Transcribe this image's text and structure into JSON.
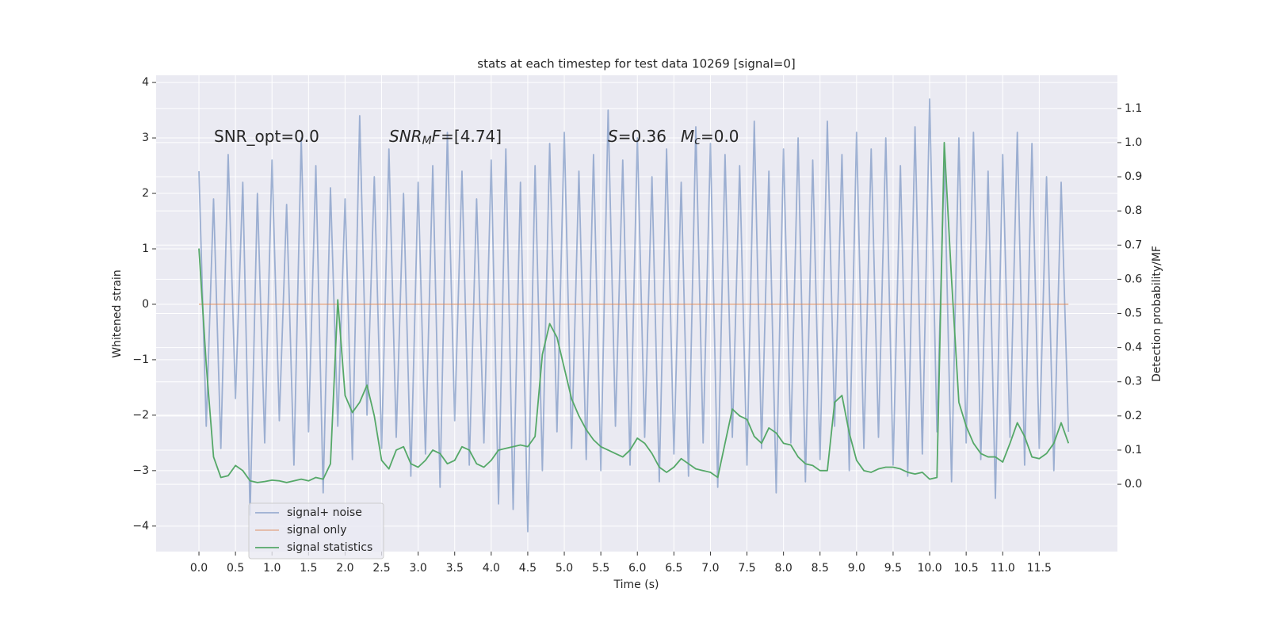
{
  "chart_data": {
    "type": "line",
    "title": "stats at each timestep for test data 10269 [signal=0]",
    "xlabel": "Time (s)",
    "ylabel": "Whitened strain",
    "y2label": "Detection probability/MF",
    "xlim": [
      -0.586,
      12.57
    ],
    "ylim": [
      -4.46,
      4.13
    ],
    "y2lim": [
      -0.197,
      1.197
    ],
    "xticks": [
      {
        "value": 0,
        "label": "0.0"
      },
      0.5,
      {
        "value": 1,
        "label": "1.0"
      },
      1.5,
      {
        "value": 2,
        "label": "2.0"
      },
      2.5,
      {
        "value": 3,
        "label": "3.0"
      },
      3.5,
      {
        "value": 4,
        "label": "4.0"
      },
      4.5,
      {
        "value": 5,
        "label": "5.0"
      },
      5.5,
      {
        "value": 6,
        "label": "6.0"
      },
      6.5,
      {
        "value": 7,
        "label": "7.0"
      },
      7.5,
      {
        "value": 8,
        "label": "8.0"
      },
      8.5,
      {
        "value": 9,
        "label": "9.0"
      },
      9.5,
      {
        "value": 10,
        "label": "10.0"
      },
      10.5,
      {
        "value": 11,
        "label": "11.0"
      },
      11.5
    ],
    "yticks": [
      {
        "value": -4,
        "label": "−4"
      },
      {
        "value": -3,
        "label": "−3"
      },
      {
        "value": -2,
        "label": "−2"
      },
      {
        "value": -1,
        "label": "−1"
      },
      0,
      1,
      2,
      3,
      4
    ],
    "y2ticks": [
      {
        "value": 0,
        "label": "0.0"
      },
      0.1,
      0.2,
      0.3,
      0.4,
      0.5,
      0.6,
      0.7,
      0.8,
      0.9,
      {
        "value": 1,
        "label": "1.0"
      },
      1.1
    ],
    "grid": true,
    "legend": "lower left",
    "annotations": [
      [
        {
          "text": "SNR_opt=0.0"
        }
      ],
      [
        {
          "math": "SNR"
        },
        {
          "sub": "M"
        },
        {
          "math": "F"
        },
        {
          "text": "=[4.74]"
        }
      ],
      [
        {
          "math": "S"
        },
        {
          "text": "=0.36"
        }
      ],
      [
        {
          "math": "M"
        },
        {
          "sub": "c"
        },
        {
          "text": "=0.0"
        }
      ]
    ],
    "x": [
      0,
      0.1,
      0.2,
      0.3,
      0.4,
      0.5,
      0.6,
      0.7,
      0.8,
      0.9,
      1,
      1.1,
      1.2,
      1.3,
      1.4,
      1.5,
      1.6,
      1.7,
      1.8,
      1.9,
      2,
      2.1,
      2.2,
      2.3,
      2.4,
      2.5,
      2.6,
      2.7,
      2.8,
      2.9,
      3,
      3.1,
      3.2,
      3.3,
      3.4,
      3.5,
      3.6,
      3.7,
      3.8,
      3.9,
      4,
      4.1,
      4.2,
      4.3,
      4.4,
      4.5,
      4.6,
      4.7,
      4.8,
      4.9,
      5,
      5.1,
      5.2,
      5.3,
      5.4,
      5.5,
      5.6,
      5.7,
      5.8,
      5.9,
      6,
      6.1,
      6.2,
      6.3,
      6.4,
      6.5,
      6.6,
      6.7,
      6.8,
      6.9,
      7,
      7.1,
      7.2,
      7.3,
      7.4,
      7.5,
      7.6,
      7.7,
      7.8,
      7.9,
      8,
      8.1,
      8.2,
      8.3,
      8.4,
      8.5,
      8.6,
      8.7,
      8.8,
      8.9,
      9,
      9.1,
      9.2,
      9.3,
      9.4,
      9.5,
      9.6,
      9.7,
      9.8,
      9.9,
      10,
      10.1,
      10.2,
      10.3,
      10.4,
      10.5,
      10.6,
      10.7,
      10.8,
      10.9,
      11,
      11.1,
      11.2,
      11.3,
      11.4,
      11.5,
      11.6,
      11.7,
      11.8,
      11.9
    ],
    "series": [
      {
        "name": "signal+ noise",
        "color": "#4c72b0",
        "opacity": 0.5,
        "values": [
          2.4,
          -2.2,
          1.9,
          -2.6,
          2.7,
          -1.7,
          2.2,
          -3.8,
          2.0,
          -2.5,
          2.6,
          -2.1,
          1.8,
          -2.9,
          3.0,
          -2.3,
          2.5,
          -3.4,
          2.1,
          -2.2,
          1.9,
          -2.8,
          3.4,
          -2.0,
          2.3,
          -2.6,
          2.8,
          -2.4,
          2.0,
          -3.1,
          2.2,
          -2.7,
          2.5,
          -3.3,
          3.1,
          -2.1,
          2.4,
          -2.9,
          1.9,
          -2.5,
          2.6,
          -3.6,
          2.8,
          -3.7,
          2.2,
          -4.1,
          2.5,
          -3.0,
          2.9,
          -2.3,
          3.1,
          -2.6,
          2.4,
          -2.8,
          2.7,
          -3.0,
          3.5,
          -2.2,
          2.6,
          -2.9,
          3.0,
          -2.4,
          2.3,
          -3.2,
          2.8,
          -2.7,
          2.2,
          -3.1,
          3.2,
          -2.5,
          2.9,
          -3.3,
          2.7,
          -2.4,
          2.5,
          -2.9,
          3.3,
          -2.6,
          2.4,
          -3.4,
          2.8,
          -2.5,
          3.0,
          -3.2,
          2.6,
          -2.8,
          3.3,
          -2.2,
          2.7,
          -3.0,
          3.1,
          -2.6,
          2.8,
          -2.4,
          3.0,
          -2.9,
          2.5,
          -3.1,
          3.2,
          -2.7,
          3.7,
          -2.3,
          2.6,
          -3.2,
          3.0,
          -2.5,
          3.1,
          -2.8,
          2.4,
          -3.5,
          2.7,
          -2.4,
          3.1,
          -2.9,
          2.9,
          -2.6,
          2.3,
          -3.0,
          2.2,
          -2.3
        ]
      },
      {
        "name": "signal only",
        "color": "#dd8452",
        "opacity": 0.5,
        "values": [
          0,
          0,
          0,
          0,
          0,
          0,
          0,
          0,
          0,
          0,
          0,
          0,
          0,
          0,
          0,
          0,
          0,
          0,
          0,
          0,
          0,
          0,
          0,
          0,
          0,
          0,
          0,
          0,
          0,
          0,
          0,
          0,
          0,
          0,
          0,
          0,
          0,
          0,
          0,
          0,
          0,
          0,
          0,
          0,
          0,
          0,
          0,
          0,
          0,
          0,
          0,
          0,
          0,
          0,
          0,
          0,
          0,
          0,
          0,
          0,
          0,
          0,
          0,
          0,
          0,
          0,
          0,
          0,
          0,
          0,
          0,
          0,
          0,
          0,
          0,
          0,
          0,
          0,
          0,
          0,
          0,
          0,
          0,
          0,
          0,
          0,
          0,
          0,
          0,
          0,
          0,
          0,
          0,
          0,
          0,
          0,
          0,
          0,
          0,
          0,
          0,
          0,
          0,
          0,
          0,
          0,
          0,
          0,
          0,
          0,
          0,
          0,
          0,
          0,
          0,
          0,
          0,
          0,
          0,
          0
        ]
      },
      {
        "name": "signal statistics",
        "color": "#55a868",
        "opacity": 1,
        "axis": "y2",
        "values": [
          0.69,
          0.35,
          0.08,
          0.02,
          0.025,
          0.055,
          0.04,
          0.01,
          0.005,
          0.008,
          0.012,
          0.01,
          0.005,
          0.01,
          0.015,
          0.01,
          0.02,
          0.015,
          0.06,
          0.54,
          0.26,
          0.21,
          0.24,
          0.29,
          0.2,
          0.07,
          0.045,
          0.1,
          0.11,
          0.06,
          0.05,
          0.07,
          0.1,
          0.09,
          0.06,
          0.07,
          0.11,
          0.1,
          0.06,
          0.05,
          0.07,
          0.1,
          0.105,
          0.11,
          0.115,
          0.11,
          0.14,
          0.38,
          0.47,
          0.43,
          0.34,
          0.25,
          0.2,
          0.16,
          0.13,
          0.11,
          0.1,
          0.09,
          0.08,
          0.1,
          0.135,
          0.12,
          0.09,
          0.05,
          0.035,
          0.05,
          0.075,
          0.06,
          0.045,
          0.04,
          0.035,
          0.02,
          0.12,
          0.22,
          0.2,
          0.19,
          0.14,
          0.12,
          0.165,
          0.15,
          0.12,
          0.115,
          0.08,
          0.06,
          0.055,
          0.04,
          0.04,
          0.24,
          0.26,
          0.15,
          0.07,
          0.04,
          0.035,
          0.045,
          0.05,
          0.05,
          0.045,
          0.035,
          0.03,
          0.035,
          0.015,
          0.02,
          1.0,
          0.6,
          0.24,
          0.17,
          0.12,
          0.09,
          0.08,
          0.08,
          0.065,
          0.12,
          0.18,
          0.14,
          0.08,
          0.075,
          0.09,
          0.12,
          0.18,
          0.12
        ]
      }
    ]
  }
}
